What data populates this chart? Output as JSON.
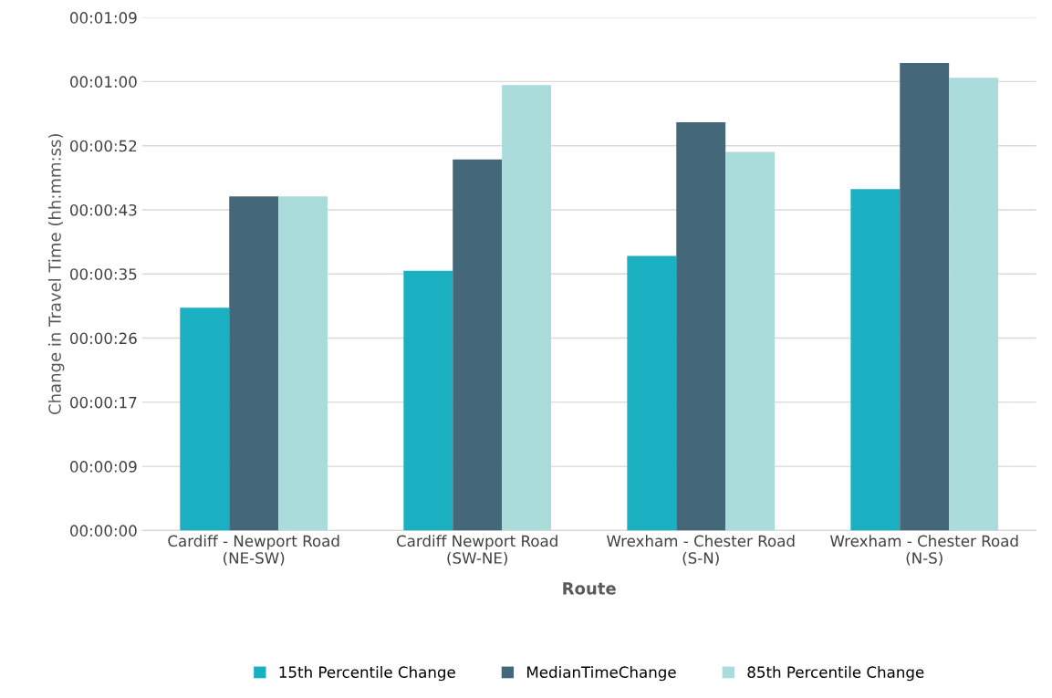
{
  "chart_data": {
    "type": "bar",
    "xlabel": "Route",
    "ylabel": "Change in Travel Time (hh:mm:ss)",
    "categories": [
      "Cardiff - Newport Road\n(NE-SW)",
      "Cardiff Newport Road\n(SW-NE)",
      "Wrexham - Chester Road\n(S-N)",
      "Wrexham - Chester Road\n(N-S)"
    ],
    "series": [
      {
        "name": "15th Percentile Change",
        "color": "#1ab0c2",
        "values": [
          30,
          35,
          37,
          46
        ]
      },
      {
        "name": "MedianTimeChange",
        "color": "#44687a",
        "values": [
          45,
          50,
          55,
          63
        ]
      },
      {
        "name": "85th Percentile Change",
        "color": "#a9dcda",
        "values": [
          45,
          60,
          51,
          61
        ]
      }
    ],
    "ylim": [
      0,
      69.12
    ],
    "yticks": [
      {
        "value": 0,
        "label": "00:00:00"
      },
      {
        "value": 8.64,
        "label": "00:00:09"
      },
      {
        "value": 17.28,
        "label": "00:00:17"
      },
      {
        "value": 25.92,
        "label": "00:00:26"
      },
      {
        "value": 34.56,
        "label": "00:00:35"
      },
      {
        "value": 43.2,
        "label": "00:00:43"
      },
      {
        "value": 51.84,
        "label": "00:00:52"
      },
      {
        "value": 60.48,
        "label": "00:01:00"
      },
      {
        "value": 69.12,
        "label": "00:01:09"
      }
    ],
    "grid": "y",
    "legend": "bottom"
  }
}
